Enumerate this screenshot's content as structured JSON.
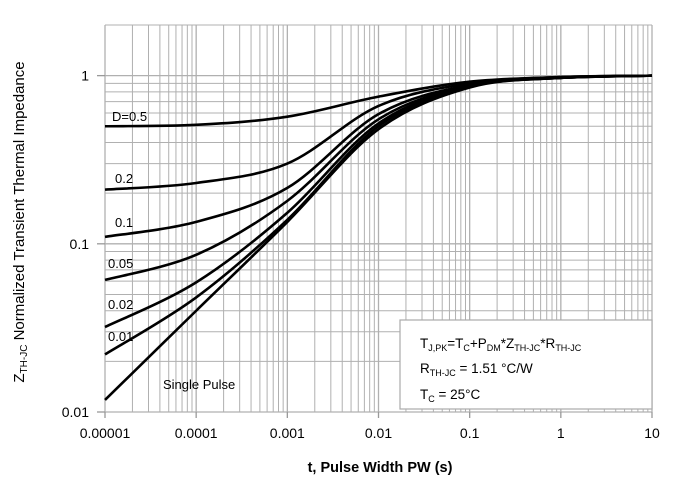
{
  "chart_data": {
    "type": "line",
    "title": "",
    "xlabel": "t, Pulse Width PW (s)",
    "ylabel_main": "Z",
    "ylabel_sub": "TH-JC",
    "ylabel_rest": " Normalized Transient Thermal Impedance",
    "x_scale": "log",
    "y_scale": "log",
    "xlim": [
      1e-05,
      10
    ],
    "ylim": [
      0.01,
      2
    ],
    "grid": true,
    "x_ticks": [
      "0.00001",
      "0.0001",
      "0.001",
      "0.01",
      "0.1",
      "1",
      "10"
    ],
    "y_ticks": [
      "0.01",
      "0.1",
      "1"
    ],
    "x": [
      1e-05,
      0.0001,
      0.001,
      0.01,
      0.1,
      1,
      10
    ],
    "series": [
      {
        "name": "D=0.5",
        "values": [
          0.5,
          0.51,
          0.57,
          0.75,
          0.92,
          0.98,
          1.0
        ]
      },
      {
        "name": "0.2",
        "values": [
          0.21,
          0.23,
          0.3,
          0.66,
          0.9,
          0.98,
          1.0
        ]
      },
      {
        "name": "0.1",
        "values": [
          0.11,
          0.135,
          0.215,
          0.59,
          0.88,
          0.97,
          1.0
        ]
      },
      {
        "name": "0.05",
        "values": [
          0.061,
          0.086,
          0.18,
          0.55,
          0.87,
          0.97,
          1.0
        ]
      },
      {
        "name": "0.02",
        "values": [
          0.032,
          0.059,
          0.153,
          0.52,
          0.86,
          0.97,
          1.0
        ]
      },
      {
        "name": "0.01",
        "values": [
          0.022,
          0.048,
          0.139,
          0.5,
          0.86,
          0.97,
          1.0
        ]
      },
      {
        "name": "Single Pulse",
        "values": [
          0.0118,
          0.04,
          0.135,
          0.48,
          0.85,
          0.97,
          1.0
        ]
      }
    ],
    "annotation": {
      "line1": {
        "t": "T",
        "t_sub": "J,PK",
        "eq": "=T",
        "c_sub": "C",
        "plus": "+P",
        "dm_sub": "DM",
        "z": "*Z",
        "z_sub": "TH-JC",
        "r": "*R",
        "r_sub": "TH-JC"
      },
      "line2": {
        "r": "R",
        "r_sub": "TH-JC",
        "value": " = 1.51 °C/W"
      },
      "line3": {
        "t": "T",
        "t_sub": "C",
        "value": " = 25°C"
      }
    },
    "colors": {
      "curves": "#000000",
      "grid": "#b0b0b0"
    }
  }
}
